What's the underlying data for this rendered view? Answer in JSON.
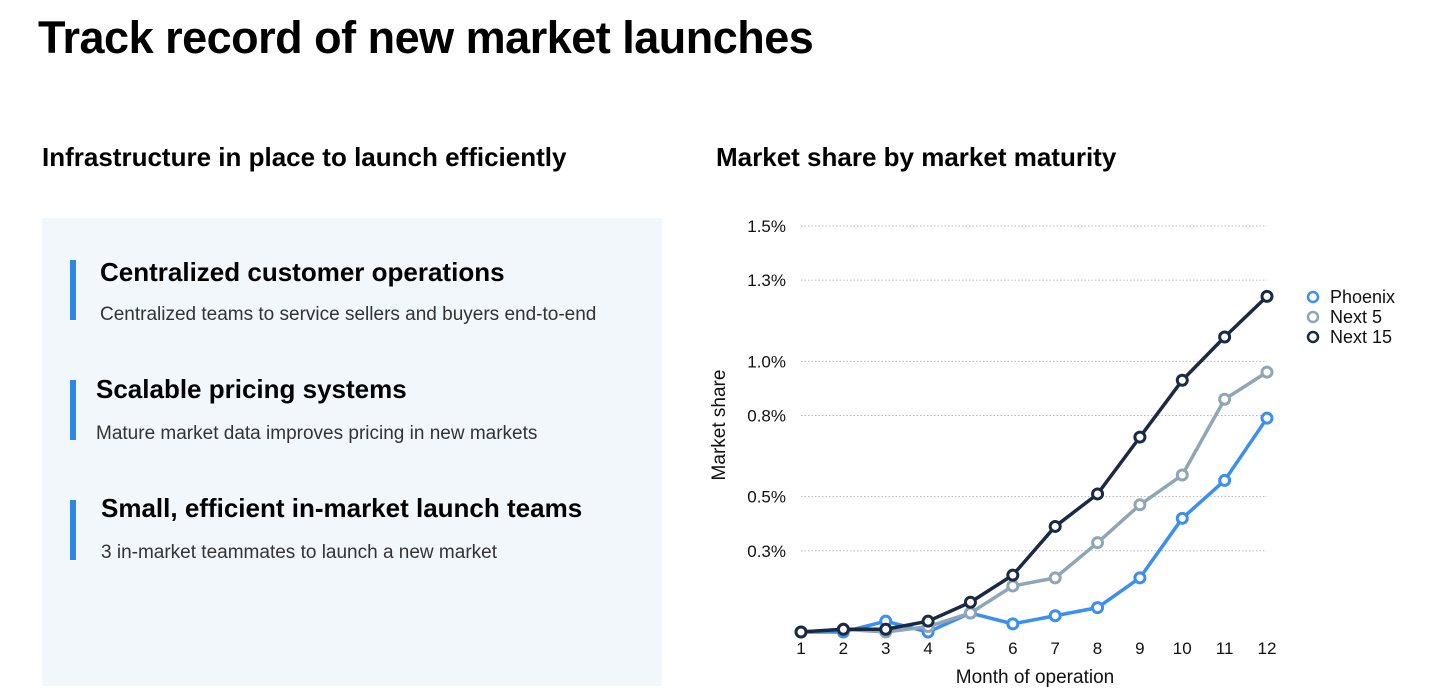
{
  "title": "Track record of new market launches",
  "left": {
    "heading": "Infrastructure in place to launch efficiently",
    "features": [
      {
        "title": "Centralized customer operations",
        "description": "Centralized teams to service sellers and buyers end-to-end"
      },
      {
        "title": "Scalable pricing systems",
        "description": "Mature market data improves pricing in new markets"
      },
      {
        "title": "Small, efficient in-market launch teams",
        "description": "3 in-market teammates to launch a new market"
      }
    ]
  },
  "right": {
    "heading": "Market share by market maturity"
  },
  "chart_data": {
    "type": "line",
    "xlabel": "Month of operation",
    "ylabel": "Market share",
    "x": [
      1,
      2,
      3,
      4,
      5,
      6,
      7,
      8,
      9,
      10,
      11,
      12
    ],
    "y_ticks": [
      0.3,
      0.5,
      0.8,
      1.0,
      1.3,
      1.5
    ],
    "y_tick_labels": [
      "0.3%",
      "0.5%",
      "0.8%",
      "1.0%",
      "1.3%",
      "1.5%"
    ],
    "ylim": [
      0,
      1.5
    ],
    "grid": "horizontal dotted",
    "legend": "right",
    "series": [
      {
        "name": "Phoenix",
        "color": "#3b8ff0",
        "values": [
          0.0,
          0.0,
          0.04,
          0.0,
          0.07,
          0.03,
          0.06,
          0.09,
          0.2,
          0.42,
          0.56,
          0.79
        ]
      },
      {
        "name": "Next 5",
        "color": "#8ea6b7",
        "values": [
          0.0,
          0.01,
          0.0,
          0.02,
          0.07,
          0.17,
          0.2,
          0.33,
          0.47,
          0.58,
          0.86,
          0.96
        ]
      },
      {
        "name": "Next 15",
        "color": "#1a2a45",
        "values": [
          0.0,
          0.01,
          0.01,
          0.04,
          0.11,
          0.21,
          0.39,
          0.51,
          0.72,
          0.93,
          1.09,
          1.24
        ]
      }
    ]
  }
}
